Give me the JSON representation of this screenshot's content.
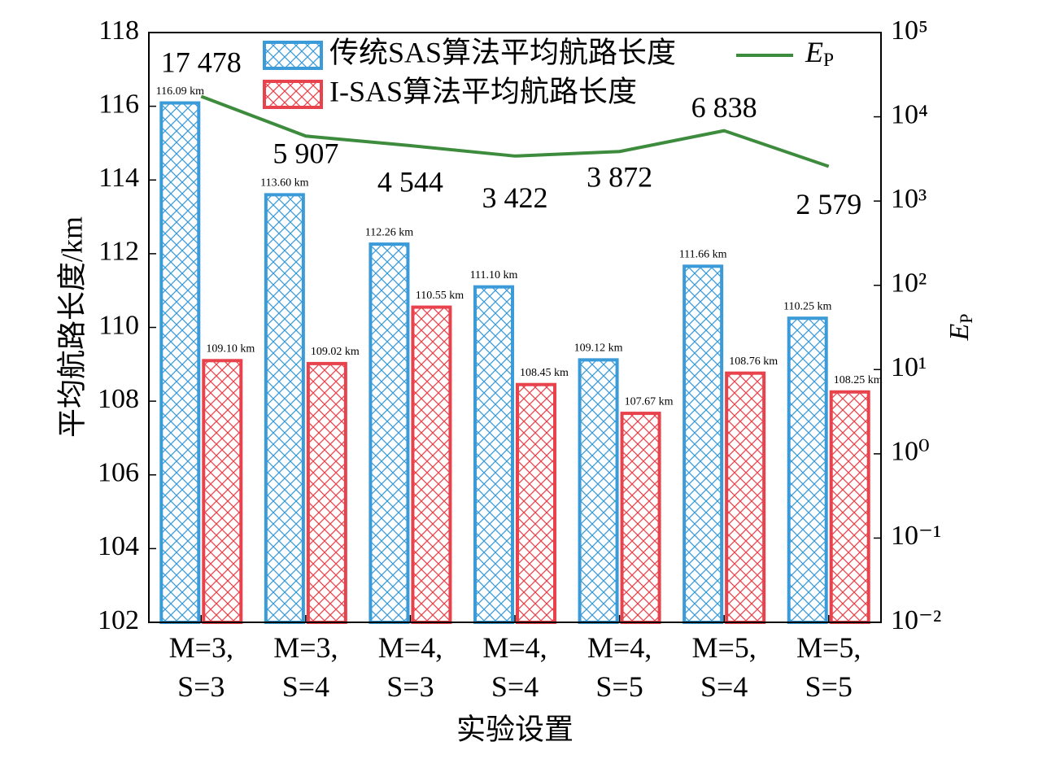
{
  "chart_data": {
    "type": "bar",
    "y_label": "平均航路长度/km",
    "y2_label": "EP",
    "x_label": "实验设置",
    "categories": [
      "M=3, S=3",
      "M=3, S=4",
      "M=4, S=3",
      "M=4, S=4",
      "M=4, S=5",
      "M=5, S=4",
      "M=5, S=5"
    ],
    "series": [
      {
        "name": "传统SAS算法平均航路长度",
        "color": "#3b9bd8",
        "type": "bar",
        "values": [
          116.09,
          113.6,
          112.26,
          111.1,
          109.12,
          111.66,
          110.25
        ],
        "value_labels": [
          "116.09 km",
          "113.60 km",
          "112.26 km",
          "111.10 km",
          "109.12 km",
          "111.66 km",
          "110.25 km"
        ]
      },
      {
        "name": "I-SAS算法平均航路长度",
        "color": "#e8434c",
        "type": "bar",
        "values": [
          109.1,
          109.02,
          110.55,
          108.45,
          107.67,
          108.76,
          108.25
        ],
        "value_labels": [
          "109.10 km",
          "109.02 km",
          "110.55 km",
          "108.45 km",
          "107.67 km",
          "108.76 km",
          "108.25 km"
        ]
      },
      {
        "name": "EP",
        "color": "#3d8b3d",
        "type": "line",
        "axis": "y2",
        "values": [
          17478,
          5907,
          4544,
          3422,
          3872,
          6838,
          2579
        ],
        "value_labels": [
          "17 478",
          "5 907",
          "4 544",
          "3 422",
          "3 872",
          "6 838",
          "2 579"
        ]
      }
    ],
    "ylim": [
      102,
      118
    ],
    "yticks": [
      102,
      104,
      106,
      108,
      110,
      112,
      114,
      116,
      118
    ],
    "y2_scale": "log",
    "y2lim": [
      0.01,
      100000
    ],
    "y2ticks": [
      {
        "value": 0.01,
        "label": "10⁻²"
      },
      {
        "value": 0.1,
        "label": "10⁻¹"
      },
      {
        "value": 1,
        "label": "10⁰"
      },
      {
        "value": 10,
        "label": "10¹"
      },
      {
        "value": 100,
        "label": "10²"
      },
      {
        "value": 1000,
        "label": "10³"
      },
      {
        "value": 10000,
        "label": "10⁴"
      },
      {
        "value": 100000,
        "label": "10⁵"
      }
    ]
  }
}
